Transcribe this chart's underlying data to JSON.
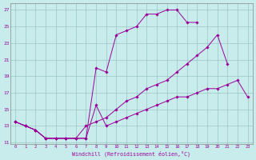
{
  "bg_color": "#c8ecec",
  "line_color": "#990099",
  "xlim": [
    -0.5,
    23.5
  ],
  "ylim": [
    10.8,
    27.8
  ],
  "yticks": [
    11,
    13,
    15,
    17,
    19,
    21,
    23,
    25,
    27
  ],
  "xticks": [
    0,
    1,
    2,
    3,
    4,
    5,
    6,
    7,
    8,
    9,
    10,
    11,
    12,
    13,
    14,
    15,
    16,
    17,
    18,
    19,
    20,
    21,
    22,
    23
  ],
  "xlabel": "Windchill (Refroidissement éolien,°C)",
  "curve1_x": [
    0,
    1,
    2,
    3,
    4,
    5,
    6,
    7,
    8,
    9,
    10,
    11,
    12,
    13,
    14,
    15,
    16,
    17,
    18
  ],
  "curve1_y": [
    13.5,
    13.0,
    12.5,
    11.5,
    11.5,
    11.5,
    11.5,
    11.5,
    20.0,
    19.5,
    24.0,
    24.5,
    25.0,
    26.5,
    26.5,
    27.0,
    27.0,
    25.5,
    25.5
  ],
  "curve2_x": [
    0,
    1,
    2,
    3,
    4,
    5,
    6,
    7,
    8,
    9,
    10,
    11,
    12,
    13,
    14,
    15,
    16,
    17,
    18,
    19,
    20,
    21
  ],
  "curve2_y": [
    13.5,
    13.0,
    12.5,
    11.5,
    11.5,
    11.5,
    11.5,
    13.0,
    13.5,
    14.0,
    15.0,
    16.0,
    16.5,
    17.5,
    18.0,
    18.5,
    19.5,
    20.5,
    21.5,
    22.5,
    24.0,
    20.5
  ],
  "curve3_x": [
    0,
    1,
    2,
    3,
    4,
    5,
    6,
    7,
    8,
    9,
    10,
    11,
    12,
    13,
    14,
    15,
    16,
    17,
    18,
    19,
    20,
    21,
    22,
    23
  ],
  "curve3_y": [
    13.5,
    13.0,
    12.5,
    11.5,
    11.5,
    11.5,
    11.5,
    11.5,
    15.5,
    13.0,
    13.5,
    14.0,
    14.5,
    15.0,
    15.5,
    16.0,
    16.5,
    16.5,
    17.0,
    17.5,
    17.5,
    18.0,
    18.5,
    16.5
  ]
}
